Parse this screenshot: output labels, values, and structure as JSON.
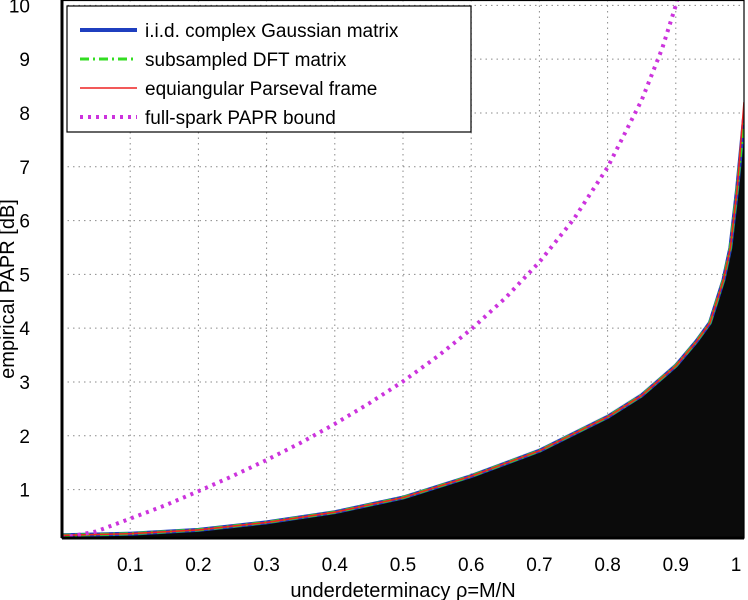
{
  "chart_data": {
    "type": "line",
    "xlabel": "underdeterminacy  ρ=M/N",
    "ylabel": "empirical PAPR [dB]",
    "xlim": [
      0.0,
      1.0
    ],
    "ylim": [
      0.1,
      10.1
    ],
    "x_ticks": [
      "0.1",
      "0.2",
      "0.3",
      "0.4",
      "0.5",
      "0.6",
      "0.7",
      "0.8",
      "0.9",
      "1"
    ],
    "y_ticks": [
      "1",
      "2",
      "3",
      "4",
      "5",
      "6",
      "7",
      "8",
      "9",
      "10"
    ],
    "grid": true,
    "legend_position": "top-left",
    "background": "heatmap: black region below the empirical PAPR curves, white above",
    "series": [
      {
        "name": "i.i.d. complex Gaussian matrix",
        "color": "#1f3fbf",
        "style": "solid-thick",
        "x": [
          0.0,
          0.1,
          0.2,
          0.3,
          0.4,
          0.5,
          0.6,
          0.7,
          0.8,
          0.85,
          0.9,
          0.93,
          0.95,
          0.97,
          0.98,
          0.99,
          1.0
        ],
        "y": [
          0.15,
          0.18,
          0.25,
          0.39,
          0.58,
          0.85,
          1.25,
          1.72,
          2.35,
          2.75,
          3.3,
          3.75,
          4.1,
          4.9,
          5.5,
          6.6,
          7.9
        ]
      },
      {
        "name": "subsampled DFT matrix",
        "color": "#33dd22",
        "style": "dash-dot",
        "x": [
          0.0,
          0.1,
          0.2,
          0.3,
          0.4,
          0.5,
          0.6,
          0.7,
          0.8,
          0.85,
          0.9,
          0.93,
          0.95,
          0.97,
          0.98,
          0.99,
          1.0
        ],
        "y": [
          0.15,
          0.18,
          0.25,
          0.39,
          0.58,
          0.85,
          1.25,
          1.72,
          2.35,
          2.75,
          3.3,
          3.75,
          4.1,
          4.9,
          5.5,
          6.6,
          7.9
        ]
      },
      {
        "name": "equiangular Parseval frame",
        "color": "#ee2222",
        "style": "solid-thin",
        "x": [
          0.0,
          0.1,
          0.2,
          0.3,
          0.4,
          0.5,
          0.6,
          0.7,
          0.8,
          0.85,
          0.9,
          0.93,
          0.95,
          0.97,
          0.98,
          0.99,
          1.0
        ],
        "y": [
          0.15,
          0.18,
          0.25,
          0.39,
          0.58,
          0.85,
          1.25,
          1.72,
          2.35,
          2.75,
          3.3,
          3.75,
          4.1,
          4.9,
          5.5,
          6.6,
          8.2
        ]
      },
      {
        "name": "full-spark PAPR bound",
        "color": "#cc33dd",
        "style": "dotted",
        "x": [
          0.0,
          0.05,
          0.1,
          0.15,
          0.2,
          0.25,
          0.3,
          0.35,
          0.4,
          0.45,
          0.5,
          0.55,
          0.6,
          0.65,
          0.7,
          0.75,
          0.8,
          0.85,
          0.88,
          0.9,
          0.91
        ],
        "y": [
          0.1,
          0.22,
          0.46,
          0.7,
          0.97,
          1.25,
          1.55,
          1.87,
          2.22,
          2.6,
          3.01,
          3.47,
          3.98,
          4.56,
          5.23,
          6.02,
          6.99,
          8.24,
          9.2,
          10.0,
          10.5
        ]
      }
    ]
  }
}
